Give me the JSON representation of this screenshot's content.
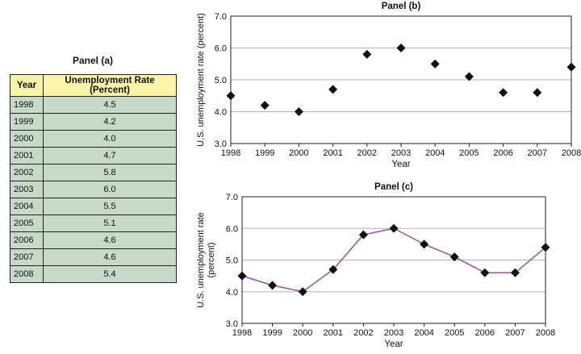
{
  "panel_a": {
    "title": "Panel (a)",
    "headers": [
      "Year",
      "Unemployment Rate (Percent)"
    ],
    "rows": [
      {
        "year": "1998",
        "rate": "4.5"
      },
      {
        "year": "1999",
        "rate": "4.2"
      },
      {
        "year": "2000",
        "rate": "4.0"
      },
      {
        "year": "2001",
        "rate": "4.7"
      },
      {
        "year": "2002",
        "rate": "5.8"
      },
      {
        "year": "2003",
        "rate": "6.0"
      },
      {
        "year": "2004",
        "rate": "5.5"
      },
      {
        "year": "2005",
        "rate": "5.1"
      },
      {
        "year": "2006",
        "rate": "4.6"
      },
      {
        "year": "2007",
        "rate": "4.6"
      },
      {
        "year": "2008",
        "rate": "5.4"
      }
    ],
    "colors": {
      "header_bg": "#fbf3a8",
      "cell_bg": "#c7d9c8"
    }
  },
  "chart_data": [
    {
      "type": "table",
      "title": "Panel (a)",
      "columns": [
        "Year",
        "Unemployment Rate (Percent)"
      ],
      "rows": [
        [
          "1998",
          "4.5"
        ],
        [
          "1999",
          "4.2"
        ],
        [
          "2000",
          "4.0"
        ],
        [
          "2001",
          "4.7"
        ],
        [
          "2002",
          "5.8"
        ],
        [
          "2003",
          "6.0"
        ],
        [
          "2004",
          "5.5"
        ],
        [
          "2005",
          "5.1"
        ],
        [
          "2006",
          "4.6"
        ],
        [
          "2007",
          "4.6"
        ],
        [
          "2008",
          "5.4"
        ]
      ]
    },
    {
      "type": "scatter",
      "title": "Panel (b)",
      "xlabel": "Year",
      "ylabel": "U.S. unemployment rate (percent)",
      "x": [
        "1998",
        "1999",
        "2000",
        "2001",
        "2002",
        "2003",
        "2004",
        "2005",
        "2006",
        "2007",
        "2008"
      ],
      "y": [
        4.5,
        4.2,
        4.0,
        4.7,
        5.8,
        6.0,
        5.5,
        5.1,
        4.6,
        4.6,
        5.4
      ],
      "ylim": [
        3.0,
        7.0
      ],
      "yticks": [
        "3.0",
        "4.0",
        "5.0",
        "6.0",
        "7.0"
      ],
      "grid": true,
      "marker_color": "#111111"
    },
    {
      "type": "line",
      "title": "Panel (c)",
      "xlabel": "Year",
      "ylabel_lines": [
        "U.S. unemployment rate",
        "(percent)"
      ],
      "x": [
        "1998",
        "1999",
        "2000",
        "2001",
        "2002",
        "2003",
        "2004",
        "2005",
        "2006",
        "2007",
        "2008"
      ],
      "y": [
        4.5,
        4.2,
        4.0,
        4.7,
        5.8,
        6.0,
        5.5,
        5.1,
        4.6,
        4.6,
        5.4
      ],
      "ylim": [
        3.0,
        7.0
      ],
      "yticks": [
        "3.0",
        "4.0",
        "5.0",
        "6.0",
        "7.0"
      ],
      "grid": true,
      "line_color": "#a3509a",
      "marker_color": "#111111"
    }
  ]
}
